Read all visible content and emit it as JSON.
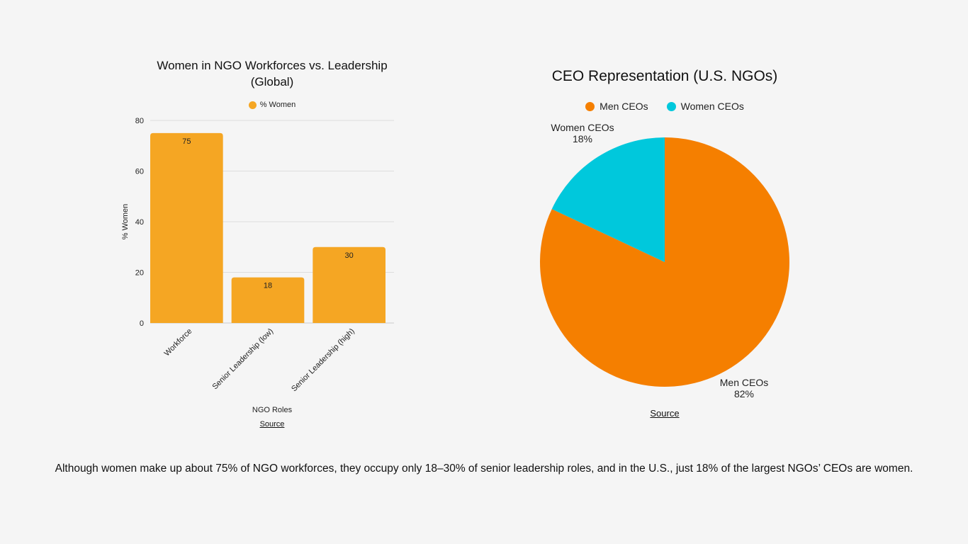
{
  "colors": {
    "bar": "#F5A623",
    "men": "#F57F00",
    "women": "#00C8DC",
    "grid": "#dddddd",
    "axis": "#cccccc"
  },
  "chart_data": [
    {
      "type": "bar",
      "title": "Women in NGO Workforces vs. Leadership (Global)",
      "legend": {
        "placement": "top",
        "entries": [
          "% Women"
        ]
      },
      "categories": [
        "Workforce",
        "Senior Leadership (low)",
        "Senior Leadership (high)"
      ],
      "series": [
        {
          "name": "% Women",
          "values": [
            75,
            18,
            30
          ]
        }
      ],
      "xlabel": "NGO Roles",
      "ylabel": "% Women",
      "ylim": [
        0,
        80
      ],
      "yticks": [
        0,
        20,
        40,
        60,
        80
      ],
      "grid": true,
      "source_label": "Source"
    },
    {
      "type": "pie",
      "title": "CEO Representation (U.S. NGOs)",
      "legend": {
        "placement": "top",
        "entries": [
          "Men CEOs",
          "Women CEOs"
        ]
      },
      "slices": [
        {
          "label": "Men CEOs",
          "value": 82,
          "value_label": "82%"
        },
        {
          "label": "Women CEOs",
          "value": 18,
          "value_label": "18%"
        }
      ],
      "source_label": "Source"
    }
  ],
  "caption": "Although women make up about 75% of NGO workforces, they occupy only 18–30% of senior leadership roles, and in the U.S., just 18% of the largest NGOs’ CEOs are women."
}
